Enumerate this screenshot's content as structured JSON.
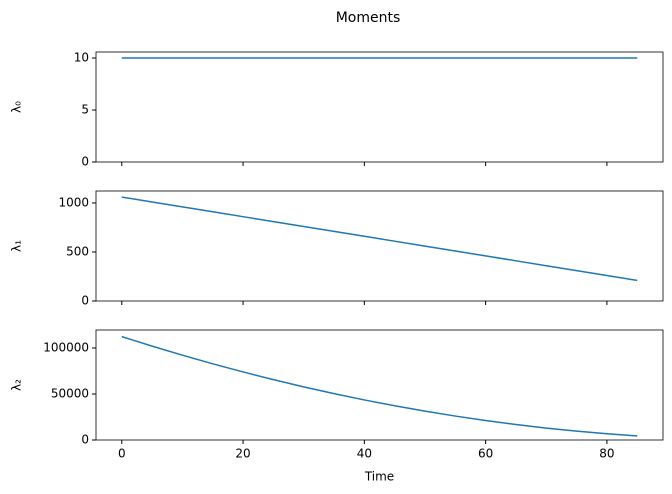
{
  "title": "Moments",
  "chart_data": [
    {
      "type": "line",
      "ylabel": "λ₀",
      "x": [
        0,
        5,
        10,
        15,
        20,
        25,
        30,
        35,
        40,
        45,
        50,
        55,
        60,
        65,
        70,
        75,
        80,
        85
      ],
      "series": [
        {
          "color": "#1f77b4",
          "values": [
            10,
            10,
            10,
            10,
            10,
            10,
            10,
            10,
            10,
            10,
            10,
            10,
            10,
            10,
            10,
            10,
            10,
            10
          ]
        }
      ],
      "xlim": [
        -4.25,
        89.25
      ],
      "xticks": [
        0,
        20,
        40,
        60,
        80
      ],
      "show_xticklabels": false,
      "ylim": [
        0,
        10.58
      ],
      "yticks": [
        0,
        5,
        10
      ]
    },
    {
      "type": "line",
      "ylabel": "λ₁",
      "x": [
        0,
        5,
        10,
        15,
        20,
        25,
        30,
        35,
        40,
        45,
        50,
        55,
        60,
        65,
        70,
        75,
        80,
        85
      ],
      "series": [
        {
          "color": "#1f77b4",
          "values": [
            1060,
            1010,
            960,
            910,
            860,
            810,
            760,
            710,
            660,
            610,
            560,
            510,
            460,
            410,
            360,
            310,
            260,
            210
          ]
        }
      ],
      "xlim": [
        -4.25,
        89.25
      ],
      "xticks": [
        0,
        20,
        40,
        60,
        80
      ],
      "show_xticklabels": false,
      "ylim": [
        0,
        1122
      ],
      "yticks": [
        0,
        500,
        1000
      ]
    },
    {
      "type": "line",
      "ylabel": "λ₂",
      "xlabel": "Time",
      "x": [
        0,
        5,
        10,
        15,
        20,
        25,
        30,
        35,
        40,
        45,
        50,
        55,
        60,
        65,
        70,
        75,
        80,
        85
      ],
      "series": [
        {
          "color": "#1f77b4",
          "values": [
            112360,
            102010,
            92160,
            82810,
            73960,
            65610,
            57760,
            50410,
            43560,
            37210,
            31360,
            26010,
            21160,
            16810,
            12960,
            9610,
            6760,
            4410
          ]
        }
      ],
      "xlim": [
        -4.25,
        89.25
      ],
      "xticks": [
        0,
        20,
        40,
        60,
        80
      ],
      "show_xticklabels": true,
      "ylim": [
        0,
        119565
      ],
      "yticks": [
        0,
        50000,
        100000
      ]
    }
  ]
}
